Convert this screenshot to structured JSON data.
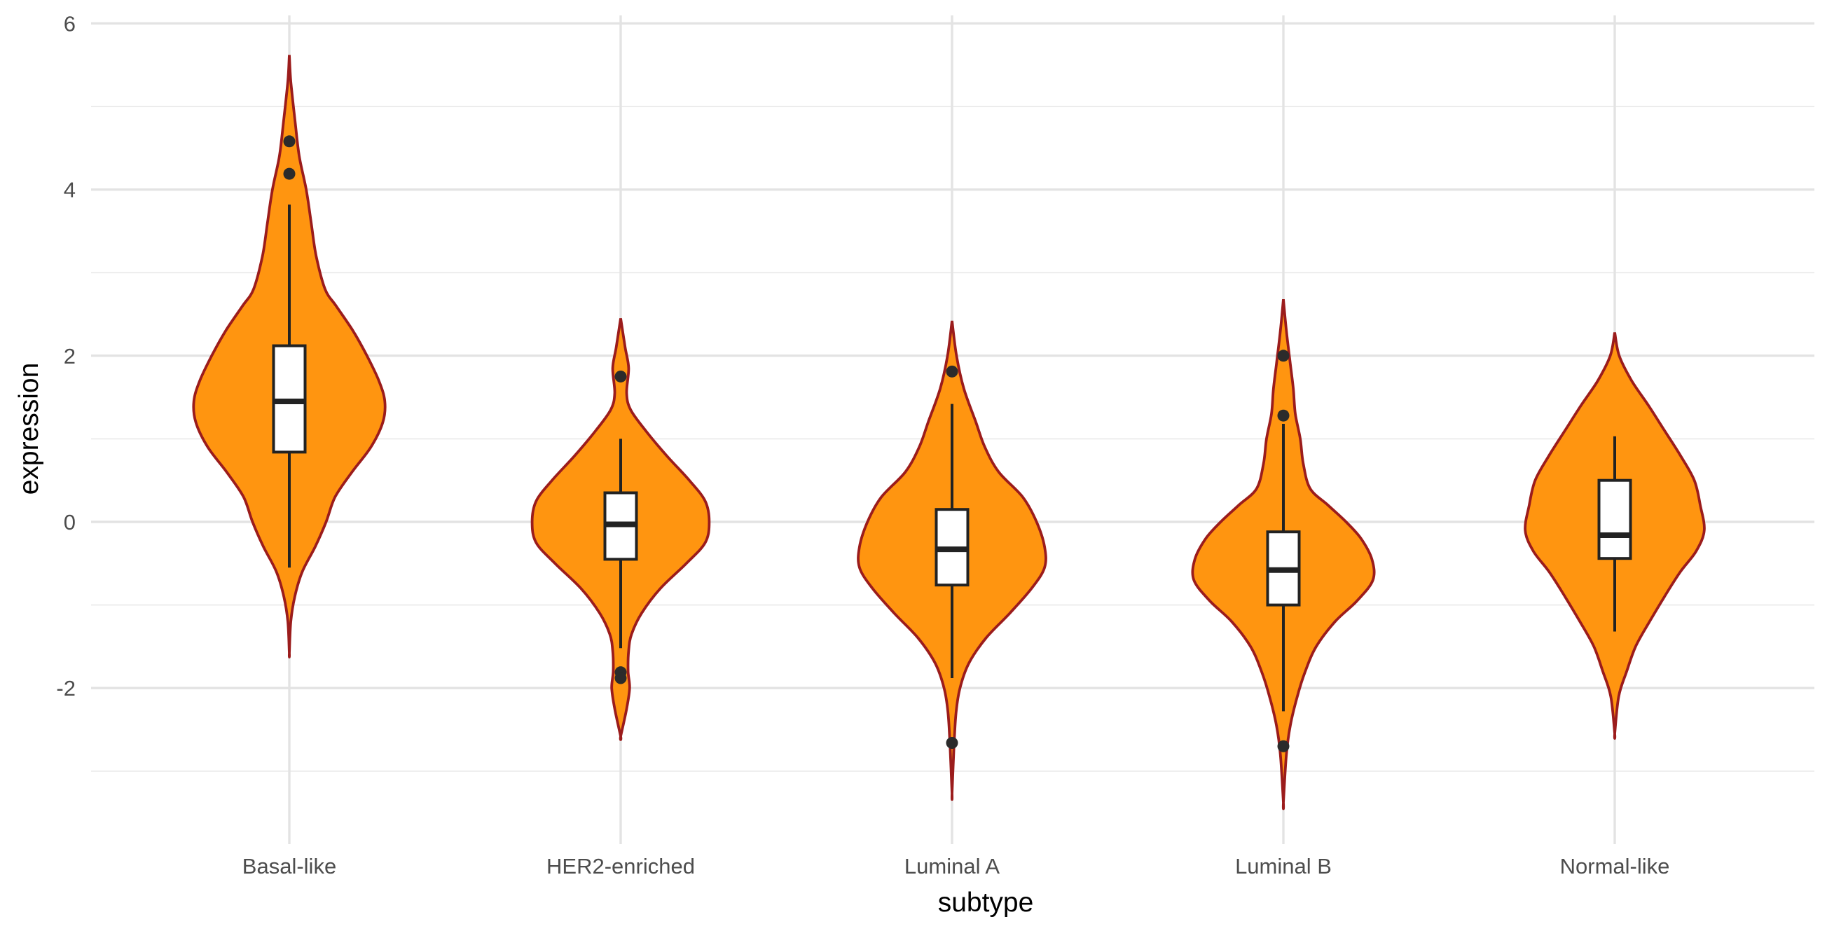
{
  "chart_data": {
    "type": "violin",
    "xlabel": "subtype",
    "ylabel": "expression",
    "ylim": [
      -4.0,
      6.0
    ],
    "yticks": [
      -2,
      0,
      2,
      4,
      6
    ],
    "ytick_labels": [
      "-2",
      "0",
      "2",
      "4",
      "6"
    ],
    "minor_yticks": [
      -3,
      -1,
      1,
      3,
      5
    ],
    "fill_color": "#ff9510",
    "outline_color": "#9b1c1c",
    "categories": [
      "Basal-like",
      "HER2-enriched",
      "Luminal A",
      "Luminal B",
      "Normal-like"
    ],
    "groups": [
      {
        "name": "Basal-like",
        "box": {
          "q1": 0.84,
          "median": 1.45,
          "q3": 2.12,
          "whisker_low": -0.55,
          "whisker_high": 3.82
        },
        "outliers": [
          4.58,
          4.19
        ],
        "violin_profile": [
          [
            5.62,
            0.0
          ],
          [
            5.3,
            0.015
          ],
          [
            4.8,
            0.06
          ],
          [
            4.4,
            0.1
          ],
          [
            4.0,
            0.17
          ],
          [
            3.6,
            0.22
          ],
          [
            3.2,
            0.27
          ],
          [
            2.8,
            0.36
          ],
          [
            2.6,
            0.47
          ],
          [
            2.3,
            0.64
          ],
          [
            2.0,
            0.78
          ],
          [
            1.7,
            0.9
          ],
          [
            1.45,
            0.96
          ],
          [
            1.2,
            0.94
          ],
          [
            0.9,
            0.82
          ],
          [
            0.6,
            0.63
          ],
          [
            0.3,
            0.46
          ],
          [
            0.0,
            0.37
          ],
          [
            -0.3,
            0.26
          ],
          [
            -0.6,
            0.13
          ],
          [
            -0.9,
            0.055
          ],
          [
            -1.2,
            0.015
          ],
          [
            -1.58,
            0.0
          ]
        ]
      },
      {
        "name": "HER2-enriched",
        "box": {
          "q1": -0.45,
          "median": -0.03,
          "q3": 0.35,
          "whisker_low": -1.52,
          "whisker_high": 1.0
        },
        "outliers": [
          1.75,
          -1.81,
          -1.88
        ],
        "violin_profile": [
          [
            2.45,
            0.0
          ],
          [
            2.1,
            0.045
          ],
          [
            1.85,
            0.08
          ],
          [
            1.55,
            0.06
          ],
          [
            1.35,
            0.1
          ],
          [
            1.1,
            0.25
          ],
          [
            0.8,
            0.46
          ],
          [
            0.5,
            0.69
          ],
          [
            0.25,
            0.85
          ],
          [
            0.0,
            0.89
          ],
          [
            -0.25,
            0.85
          ],
          [
            -0.5,
            0.66
          ],
          [
            -0.8,
            0.4
          ],
          [
            -1.1,
            0.21
          ],
          [
            -1.35,
            0.11
          ],
          [
            -1.55,
            0.08
          ],
          [
            -1.8,
            0.075
          ],
          [
            -2.0,
            0.09
          ],
          [
            -2.25,
            0.06
          ],
          [
            -2.58,
            0.0
          ]
        ]
      },
      {
        "name": "Luminal A",
        "box": {
          "q1": -0.76,
          "median": -0.33,
          "q3": 0.15,
          "whisker_low": -1.88,
          "whisker_high": 1.42
        },
        "outliers": [
          1.81,
          -2.66
        ],
        "violin_profile": [
          [
            2.42,
            0.0
          ],
          [
            2.0,
            0.045
          ],
          [
            1.6,
            0.12
          ],
          [
            1.2,
            0.24
          ],
          [
            0.9,
            0.33
          ],
          [
            0.6,
            0.47
          ],
          [
            0.3,
            0.71
          ],
          [
            0.0,
            0.85
          ],
          [
            -0.3,
            0.93
          ],
          [
            -0.55,
            0.93
          ],
          [
            -0.8,
            0.8
          ],
          [
            -1.1,
            0.58
          ],
          [
            -1.4,
            0.34
          ],
          [
            -1.7,
            0.17
          ],
          [
            -2.0,
            0.08
          ],
          [
            -2.3,
            0.04
          ],
          [
            -2.7,
            0.02
          ],
          [
            -3.27,
            0.0
          ]
        ]
      },
      {
        "name": "Luminal B",
        "box": {
          "q1": -1.0,
          "median": -0.58,
          "q3": -0.12,
          "whisker_low": -2.28,
          "whisker_high": 1.18
        },
        "outliers": [
          2.0,
          1.28,
          -2.7
        ],
        "violin_profile": [
          [
            2.68,
            0.0
          ],
          [
            2.3,
            0.03
          ],
          [
            1.9,
            0.07
          ],
          [
            1.6,
            0.1
          ],
          [
            1.3,
            0.12
          ],
          [
            1.0,
            0.17
          ],
          [
            0.7,
            0.2
          ],
          [
            0.4,
            0.27
          ],
          [
            0.2,
            0.45
          ],
          [
            0.0,
            0.63
          ],
          [
            -0.2,
            0.78
          ],
          [
            -0.45,
            0.89
          ],
          [
            -0.7,
            0.9
          ],
          [
            -0.95,
            0.74
          ],
          [
            -1.2,
            0.52
          ],
          [
            -1.5,
            0.33
          ],
          [
            -1.8,
            0.22
          ],
          [
            -2.1,
            0.14
          ],
          [
            -2.45,
            0.07
          ],
          [
            -2.8,
            0.03
          ],
          [
            -3.38,
            0.0
          ]
        ]
      },
      {
        "name": "Normal-like",
        "box": {
          "q1": -0.44,
          "median": -0.16,
          "q3": 0.5,
          "whisker_low": -1.32,
          "whisker_high": 1.03
        },
        "outliers": [],
        "violin_profile": [
          [
            2.28,
            0.0
          ],
          [
            2.0,
            0.045
          ],
          [
            1.7,
            0.17
          ],
          [
            1.4,
            0.34
          ],
          [
            1.1,
            0.5
          ],
          [
            0.8,
            0.66
          ],
          [
            0.5,
            0.8
          ],
          [
            0.2,
            0.86
          ],
          [
            -0.1,
            0.9
          ],
          [
            -0.35,
            0.82
          ],
          [
            -0.6,
            0.66
          ],
          [
            -0.9,
            0.5
          ],
          [
            -1.2,
            0.35
          ],
          [
            -1.5,
            0.21
          ],
          [
            -1.8,
            0.12
          ],
          [
            -2.1,
            0.04
          ],
          [
            -2.55,
            0.0
          ]
        ]
      }
    ]
  }
}
